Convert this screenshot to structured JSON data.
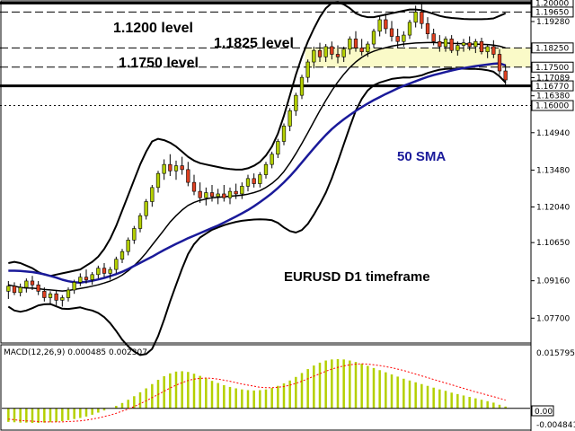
{
  "chart_data": [
    {
      "type": "candlestick",
      "annotations": {
        "lvl1200": "1.1200 level",
        "lvl1825": "1.1825 level",
        "lvl1750": "1.1750 level",
        "sma": "50 SMA",
        "timeframe": "EURUSD D1 timeframe"
      },
      "ylim": [
        1.068,
        1.2005
      ],
      "price_ticks": [
        "1.19280",
        "1.18250",
        "1.17089",
        "1.16380",
        "1.14940",
        "1.13480",
        "1.12040",
        "1.10650",
        "1.09160",
        "1.07700"
      ],
      "boxed_ticks": [
        {
          "label": "1.20000",
          "style": "line",
          "value": 1.2
        },
        {
          "label": "1.19650",
          "style": "line",
          "value": 1.1965
        },
        {
          "label": "1.18250",
          "style": "line",
          "value": 1.1825
        },
        {
          "label": "1.17500",
          "style": "line",
          "value": 1.175
        },
        {
          "label": "1.16770",
          "style": "line",
          "value": 1.1677
        },
        {
          "label": "1.16000",
          "style": "line",
          "value": 1.16
        }
      ],
      "horizontal_levels": [
        {
          "value": 1.2,
          "style": "thick"
        },
        {
          "value": 1.1965,
          "style": "dashed"
        },
        {
          "value": 1.1825,
          "style": "dashed"
        },
        {
          "value": 1.175,
          "style": "dashed"
        },
        {
          "value": 1.1677,
          "style": "thick"
        },
        {
          "value": 1.16,
          "style": "dotted"
        }
      ],
      "zone": [
        1.175,
        1.1825
      ],
      "colors": {
        "bull": "#b4d000",
        "bear": "#e04020",
        "sma": "#1a1a9a",
        "band": "#000000",
        "zone": "#fafac8",
        "signal": "#ff0000"
      },
      "candles": [
        [
          1.0875,
          1.0915,
          1.0845,
          1.0895
        ],
        [
          1.0895,
          1.091,
          1.086,
          1.087
        ],
        [
          1.087,
          1.0905,
          1.0855,
          1.089
        ],
        [
          1.089,
          1.0925,
          1.087,
          1.0915
        ],
        [
          1.0915,
          1.0935,
          1.088,
          1.09
        ],
        [
          1.09,
          1.0915,
          1.086,
          1.0875
        ],
        [
          1.0875,
          1.089,
          1.0835,
          1.085
        ],
        [
          1.085,
          1.0875,
          1.0825,
          1.0865
        ],
        [
          1.0865,
          1.088,
          1.082,
          1.084
        ],
        [
          1.084,
          1.086,
          1.0815,
          1.085
        ],
        [
          1.085,
          1.089,
          1.0835,
          1.088
        ],
        [
          1.088,
          1.092,
          1.0865,
          1.091
        ],
        [
          1.091,
          1.0945,
          1.0895,
          1.093
        ],
        [
          1.093,
          1.096,
          1.0905,
          1.092
        ],
        [
          1.092,
          1.095,
          1.09,
          1.094
        ],
        [
          1.094,
          1.0975,
          1.0925,
          1.0965
        ],
        [
          1.0965,
          1.0985,
          1.093,
          1.0945
        ],
        [
          1.0945,
          1.097,
          1.092,
          1.096
        ],
        [
          1.096,
          1.101,
          1.0945,
          1.1
        ],
        [
          1.1,
          1.104,
          1.0985,
          1.103
        ],
        [
          1.103,
          1.1085,
          1.1015,
          1.1075
        ],
        [
          1.1075,
          1.113,
          1.106,
          1.112
        ],
        [
          1.112,
          1.118,
          1.1105,
          1.117
        ],
        [
          1.117,
          1.1235,
          1.1155,
          1.1225
        ],
        [
          1.1225,
          1.129,
          1.1205,
          1.128
        ],
        [
          1.128,
          1.1345,
          1.126,
          1.1335
        ],
        [
          1.1335,
          1.139,
          1.131,
          1.137
        ],
        [
          1.137,
          1.141,
          1.1325,
          1.1345
        ],
        [
          1.1345,
          1.1385,
          1.131,
          1.1365
        ],
        [
          1.1365,
          1.14,
          1.133,
          1.135
        ],
        [
          1.135,
          1.138,
          1.1285,
          1.13
        ],
        [
          1.13,
          1.133,
          1.125,
          1.1265
        ],
        [
          1.1265,
          1.13,
          1.122,
          1.124
        ],
        [
          1.124,
          1.128,
          1.121,
          1.126
        ],
        [
          1.126,
          1.129,
          1.1225,
          1.1245
        ],
        [
          1.1245,
          1.1275,
          1.1215,
          1.1255
        ],
        [
          1.1255,
          1.129,
          1.1225,
          1.124
        ],
        [
          1.124,
          1.128,
          1.1215,
          1.1265
        ],
        [
          1.1265,
          1.1295,
          1.1235,
          1.1255
        ],
        [
          1.1255,
          1.13,
          1.1235,
          1.1285
        ],
        [
          1.1285,
          1.133,
          1.1265,
          1.1315
        ],
        [
          1.1315,
          1.1335,
          1.128,
          1.1295
        ],
        [
          1.1295,
          1.134,
          1.128,
          1.133
        ],
        [
          1.133,
          1.138,
          1.1315,
          1.137
        ],
        [
          1.137,
          1.142,
          1.1355,
          1.141
        ],
        [
          1.141,
          1.147,
          1.1395,
          1.146
        ],
        [
          1.146,
          1.153,
          1.1445,
          1.152
        ],
        [
          1.152,
          1.159,
          1.15,
          1.158
        ],
        [
          1.158,
          1.165,
          1.156,
          1.164
        ],
        [
          1.164,
          1.172,
          1.1625,
          1.171
        ],
        [
          1.171,
          1.178,
          1.169,
          1.177
        ],
        [
          1.177,
          1.183,
          1.1745,
          1.1815
        ],
        [
          1.1815,
          1.1845,
          1.177,
          1.179
        ],
        [
          1.179,
          1.184,
          1.177,
          1.183
        ],
        [
          1.183,
          1.185,
          1.178,
          1.18
        ],
        [
          1.18,
          1.1835,
          1.1765,
          1.179
        ],
        [
          1.179,
          1.183,
          1.177,
          1.182
        ],
        [
          1.182,
          1.187,
          1.18,
          1.186
        ],
        [
          1.186,
          1.189,
          1.181,
          1.1825
        ],
        [
          1.1825,
          1.186,
          1.1795,
          1.181
        ],
        [
          1.181,
          1.185,
          1.179,
          1.184
        ],
        [
          1.184,
          1.19,
          1.1825,
          1.189
        ],
        [
          1.189,
          1.195,
          1.187,
          1.1935
        ],
        [
          1.1935,
          1.196,
          1.188,
          1.19
        ],
        [
          1.19,
          1.193,
          1.185,
          1.187
        ],
        [
          1.187,
          1.19,
          1.1825,
          1.185
        ],
        [
          1.185,
          1.189,
          1.183,
          1.1875
        ],
        [
          1.1875,
          1.1935,
          1.186,
          1.1925
        ],
        [
          1.1925,
          1.199,
          1.1905,
          1.1965
        ],
        [
          1.1965,
          1.2005,
          1.19,
          1.192
        ],
        [
          1.192,
          1.1945,
          1.186,
          1.188
        ],
        [
          1.188,
          1.19,
          1.1835,
          1.185
        ],
        [
          1.185,
          1.1875,
          1.181,
          1.183
        ],
        [
          1.183,
          1.187,
          1.181,
          1.186
        ],
        [
          1.186,
          1.1875,
          1.1805,
          1.1815
        ],
        [
          1.1815,
          1.185,
          1.1795,
          1.1835
        ],
        [
          1.1835,
          1.186,
          1.181,
          1.1845
        ],
        [
          1.1845,
          1.187,
          1.1815,
          1.183
        ],
        [
          1.183,
          1.186,
          1.1805,
          1.185
        ],
        [
          1.185,
          1.1865,
          1.18,
          1.181
        ],
        [
          1.181,
          1.184,
          1.1785,
          1.183
        ],
        [
          1.183,
          1.1855,
          1.1785,
          1.18
        ],
        [
          1.18,
          1.182,
          1.172,
          1.1735
        ],
        [
          1.1735,
          1.176,
          1.168,
          1.17
        ]
      ],
      "sma50": [
        1.0955,
        1.0955,
        1.0954,
        1.0952,
        1.095,
        1.0946,
        1.0941,
        1.0935,
        1.0928,
        1.092,
        1.0914,
        1.091,
        1.0909,
        1.0912,
        1.0916,
        1.0921,
        1.0927,
        1.0934,
        1.0942,
        1.0951,
        1.0962,
        1.0974,
        1.0986,
        1.0998,
        1.101,
        1.1023,
        1.1036,
        1.1048,
        1.106,
        1.1071,
        1.1082,
        1.1092,
        1.1102,
        1.1112,
        1.1122,
        1.1132,
        1.1143,
        1.1155,
        1.1167,
        1.1179,
        1.1192,
        1.1207,
        1.1223,
        1.124,
        1.1258,
        1.1278,
        1.13,
        1.1324,
        1.135,
        1.1378,
        1.1406,
        1.1433,
        1.146,
        1.1485,
        1.1508,
        1.1528,
        1.1546,
        1.1563,
        1.1579,
        1.1594,
        1.1608,
        1.1621,
        1.1633,
        1.1645,
        1.1656,
        1.1667,
        1.1677,
        1.1686,
        1.1695,
        1.1704,
        1.1712,
        1.1719,
        1.1725,
        1.1731,
        1.1737,
        1.1742,
        1.1746,
        1.175,
        1.1754,
        1.1757,
        1.176,
        1.1763,
        1.1765,
        1.1757
      ],
      "bb_upper": [
        1.0985,
        1.099,
        1.0985,
        1.0975,
        1.0965,
        1.095,
        1.094,
        1.0935,
        1.094,
        1.0945,
        1.095,
        1.0955,
        1.096,
        1.0975,
        1.099,
        1.101,
        1.104,
        1.108,
        1.113,
        1.119,
        1.125,
        1.131,
        1.137,
        1.142,
        1.146,
        1.147,
        1.1465,
        1.1455,
        1.144,
        1.142,
        1.14,
        1.1385,
        1.1375,
        1.137,
        1.1365,
        1.136,
        1.1355,
        1.1352,
        1.135,
        1.135,
        1.1355,
        1.1365,
        1.138,
        1.1405,
        1.144,
        1.149,
        1.156,
        1.164,
        1.172,
        1.179,
        1.185,
        1.19,
        1.1945,
        1.198,
        1.2,
        1.2003,
        1.1995,
        1.198,
        1.196,
        1.195,
        1.1945,
        1.1945,
        1.195,
        1.1955,
        1.196,
        1.1965,
        1.197,
        1.1975,
        1.1975,
        1.1972,
        1.1965,
        1.1958,
        1.195,
        1.1945,
        1.1942,
        1.194,
        1.1938,
        1.1937,
        1.1937,
        1.1937,
        1.1938,
        1.194,
        1.195,
        1.196
      ],
      "bb_middle": [
        1.09,
        1.0895,
        1.089,
        1.0888,
        1.0887,
        1.0885,
        1.0882,
        1.088,
        1.0878,
        1.0876,
        1.0878,
        1.0882,
        1.0886,
        1.089,
        1.0895,
        1.09,
        1.0907,
        1.0915,
        1.0925,
        1.0938,
        1.0955,
        1.0975,
        1.0998,
        1.1025,
        1.1055,
        1.1085,
        1.1115,
        1.1145,
        1.117,
        1.1192,
        1.121,
        1.1222,
        1.123,
        1.1235,
        1.124,
        1.1242,
        1.1244,
        1.1246,
        1.1248,
        1.125,
        1.1254,
        1.126,
        1.1268,
        1.128,
        1.1296,
        1.1316,
        1.1342,
        1.1375,
        1.1412,
        1.1452,
        1.1494,
        1.1537,
        1.158,
        1.162,
        1.1658,
        1.1692,
        1.1722,
        1.1748,
        1.177,
        1.1788,
        1.1802,
        1.1812,
        1.182,
        1.1826,
        1.1832,
        1.1836,
        1.184,
        1.1842,
        1.1844,
        1.1845,
        1.1846,
        1.1846,
        1.1845,
        1.1844,
        1.1843,
        1.1842,
        1.1841,
        1.184,
        1.184,
        1.1839,
        1.1838,
        1.1836,
        1.1832,
        1.1825
      ],
      "bb_lower": [
        1.0815,
        1.08,
        1.0795,
        1.08,
        1.0809,
        1.082,
        1.0824,
        1.0825,
        1.0816,
        1.0807,
        1.0806,
        1.0809,
        1.0812,
        1.0805,
        1.08,
        1.079,
        1.0774,
        1.075,
        1.072,
        1.0686,
        1.066,
        1.064,
        1.0626,
        1.063,
        1.065,
        1.07,
        1.0765,
        1.0835,
        1.09,
        1.0964,
        1.102,
        1.1059,
        1.1085,
        1.11,
        1.1115,
        1.1124,
        1.1133,
        1.114,
        1.1146,
        1.115,
        1.1153,
        1.1155,
        1.1156,
        1.1155,
        1.1152,
        1.1142,
        1.1124,
        1.111,
        1.1104,
        1.1114,
        1.1138,
        1.1174,
        1.1215,
        1.126,
        1.1316,
        1.1381,
        1.1449,
        1.1516,
        1.158,
        1.1626,
        1.1659,
        1.1679,
        1.169,
        1.1697,
        1.1704,
        1.1707,
        1.171,
        1.1709,
        1.1713,
        1.1718,
        1.1727,
        1.1734,
        1.174,
        1.1743,
        1.1744,
        1.1744,
        1.1744,
        1.1743,
        1.1743,
        1.1741,
        1.1738,
        1.1732,
        1.1714,
        1.169
      ]
    },
    {
      "type": "bar",
      "title": "MACD(12,26,9) 0.000485 0.002307",
      "ylim": [
        -0.004841,
        0.015795
      ],
      "tick_labels": [
        "0.015795",
        "-0.004841"
      ],
      "zero_label": "0.00",
      "series": [
        {
          "values": [
            -0.0038,
            -0.0039,
            -0.004,
            -0.004,
            -0.0041,
            -0.0041,
            -0.004,
            -0.0039,
            -0.0038,
            -0.0036,
            -0.0033,
            -0.003,
            -0.0027,
            -0.0023,
            -0.0018,
            -0.0012,
            -0.0006,
            0.0,
            0.0007,
            0.0015,
            0.0024,
            0.0034,
            0.0045,
            0.0056,
            0.0068,
            0.008,
            0.009,
            0.0098,
            0.0103,
            0.0104,
            0.0102,
            0.0097,
            0.0091,
            0.0084,
            0.0077,
            0.0071,
            0.0065,
            0.006,
            0.0056,
            0.0053,
            0.0051,
            0.005,
            0.0051,
            0.0053,
            0.0057,
            0.0063,
            0.007,
            0.0078,
            0.0088,
            0.0099,
            0.011,
            0.012,
            0.0128,
            0.0134,
            0.0137,
            0.0138,
            0.0137,
            0.0134,
            0.013,
            0.0125,
            0.0119,
            0.0113,
            0.0107,
            0.0101,
            0.0095,
            0.0089,
            0.0083,
            0.0078,
            0.0073,
            0.0068,
            0.0063,
            0.0058,
            0.0053,
            0.0049,
            0.0044,
            0.004,
            0.0036,
            0.0032,
            0.0028,
            0.0024,
            0.002,
            0.0016,
            0.001,
            0.0005
          ]
        },
        {
          "values": [
            -0.003,
            -0.0032,
            -0.0034,
            -0.0035,
            -0.0036,
            -0.0037,
            -0.0038,
            -0.0038,
            -0.0038,
            -0.0038,
            -0.0037,
            -0.0036,
            -0.0035,
            -0.0033,
            -0.003,
            -0.0027,
            -0.0023,
            -0.0019,
            -0.0014,
            -0.0008,
            -0.0002,
            0.0005,
            0.0013,
            0.0021,
            0.003,
            0.0039,
            0.0048,
            0.0057,
            0.0065,
            0.0072,
            0.0078,
            0.0082,
            0.0084,
            0.0085,
            0.0084,
            0.0082,
            0.0079,
            0.0076,
            0.0072,
            0.0068,
            0.0065,
            0.0062,
            0.0059,
            0.0058,
            0.0058,
            0.0059,
            0.0061,
            0.0065,
            0.007,
            0.0076,
            0.0083,
            0.009,
            0.0097,
            0.0104,
            0.011,
            0.0115,
            0.0119,
            0.0122,
            0.0124,
            0.0125,
            0.0124,
            0.0122,
            0.012,
            0.0117,
            0.0114,
            0.011,
            0.0106,
            0.0101,
            0.0096,
            0.0091,
            0.0086,
            0.0081,
            0.0076,
            0.0071,
            0.0066,
            0.0061,
            0.0056,
            0.0051,
            0.0046,
            0.0042,
            0.0037,
            0.0033,
            0.0028,
            0.0023
          ]
        }
      ]
    }
  ]
}
